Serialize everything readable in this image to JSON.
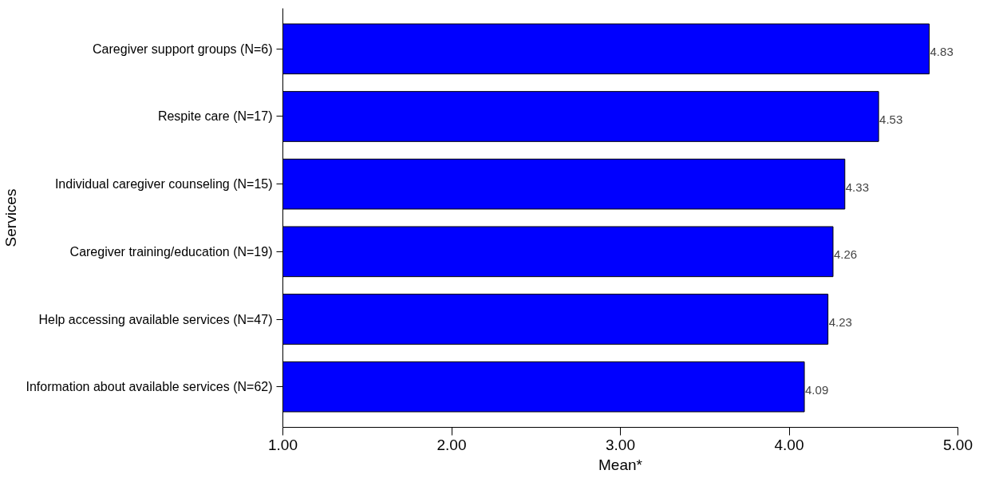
{
  "chart_data": {
    "type": "bar",
    "orientation": "horizontal",
    "xlabel": "Mean*",
    "ylabel": "Services",
    "categories": [
      "Caregiver support groups (N=6)",
      "Respite care (N=17)",
      "Individual caregiver counseling (N=15)",
      "Caregiver training/education (N=19)",
      "Help accessing available services (N=47)",
      "Information about available services (N=62)"
    ],
    "values": [
      4.83,
      4.53,
      4.33,
      4.26,
      4.23,
      4.09
    ],
    "color": "#0000ff",
    "data_labels": true,
    "xlim": [
      1,
      5
    ],
    "xticks": [
      {
        "value": 1,
        "label": "1.00"
      },
      {
        "value": 2,
        "label": "2.00"
      },
      {
        "value": 3,
        "label": "3.00"
      },
      {
        "value": 4,
        "label": "4.00"
      },
      {
        "value": 5,
        "label": "5.00"
      }
    ],
    "grid": false
  }
}
